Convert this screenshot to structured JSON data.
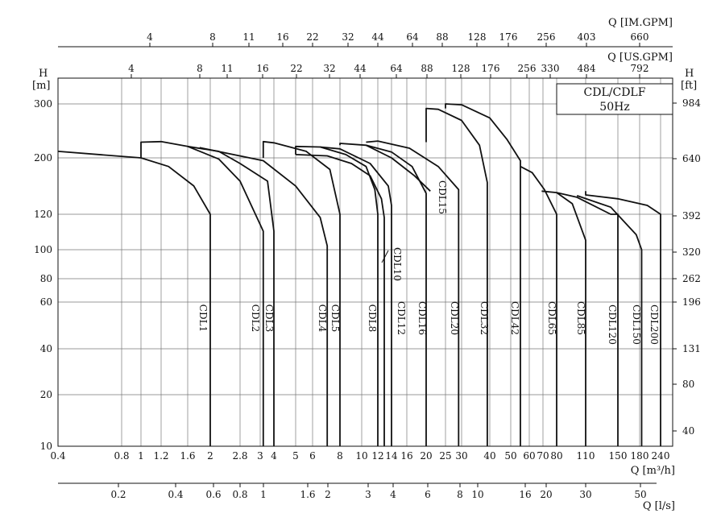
{
  "chart_data": {
    "type": "line",
    "legend": {
      "title_line1": "CDL/CDLF",
      "title_line2": "50Hz",
      "placement": "top-right"
    },
    "axes": {
      "y_left": {
        "label": "H",
        "unit": "[m]",
        "scale": "log",
        "ticks": [
          10,
          20,
          40,
          60,
          80,
          100,
          120,
          200,
          300
        ]
      },
      "y_right": {
        "label": "H",
        "unit": "[ft]",
        "ticks": [
          40,
          80,
          131,
          196,
          262,
          320,
          392,
          640,
          984
        ]
      },
      "x_main": {
        "label": "Q [m³/h]",
        "scale": "log",
        "ticks": [
          "0.4",
          "0.8",
          "1",
          "1.2",
          "1.6",
          "2",
          "2.8",
          "3",
          "4",
          "5",
          "6",
          "8",
          "10",
          "12",
          "14",
          "16",
          "20",
          "25",
          "30",
          "40",
          "50",
          "60",
          "70",
          "80",
          "110",
          "150",
          "180",
          "240"
        ]
      },
      "x_ls": {
        "label": "Q [l/s]",
        "ticks": [
          "0.2",
          "0.4",
          "0.6",
          "0.8",
          "1",
          "1.6",
          "2",
          "3",
          "4",
          "6",
          "8",
          "10",
          "16",
          "20",
          "30",
          "50"
        ]
      },
      "x_us": {
        "label": "Q [US.GPM]",
        "ticks": [
          "4",
          "8",
          "11",
          "16",
          "22",
          "32",
          "44",
          "64",
          "88",
          "128",
          "176",
          "256",
          "330",
          "484",
          "792"
        ]
      },
      "x_im": {
        "label": "Q [IM.GPM]",
        "ticks": [
          "4",
          "8",
          "11",
          "16",
          "22",
          "32",
          "44",
          "64",
          "88",
          "128",
          "176",
          "256",
          "403",
          "660"
        ]
      }
    },
    "grid": true,
    "series": [
      {
        "name": "CDL1",
        "points": [
          [
            0.4,
            210
          ],
          [
            1.0,
            200
          ],
          [
            1.3,
            185
          ],
          [
            1.7,
            155
          ],
          [
            2.0,
            120
          ],
          [
            2.0,
            10
          ]
        ]
      },
      {
        "name": "CDL2",
        "points": [
          [
            1.0,
            200
          ],
          [
            1.0,
            225
          ],
          [
            1.2,
            226
          ],
          [
            1.6,
            218
          ],
          [
            2.2,
            198
          ],
          [
            2.8,
            162
          ],
          [
            3.2,
            110
          ],
          [
            3.2,
            10
          ]
        ]
      },
      {
        "name": "CDL3",
        "points": [
          [
            1.6,
            218
          ],
          [
            2.2,
            210
          ],
          [
            2.8,
            190
          ],
          [
            3.5,
            162
          ],
          [
            4.0,
            110
          ],
          [
            4.0,
            10
          ]
        ]
      },
      {
        "name": "CDL4",
        "points": [
          [
            1.8,
            216
          ],
          [
            3.2,
            195
          ],
          [
            5.0,
            155
          ],
          [
            6.5,
            118
          ],
          [
            7.0,
            102
          ],
          [
            7.0,
            10
          ]
        ]
      },
      {
        "name": "CDL5",
        "points": [
          [
            3.2,
            200
          ],
          [
            3.2,
            226
          ],
          [
            4.0,
            224
          ],
          [
            5.6,
            210
          ],
          [
            7.2,
            180
          ],
          [
            8.0,
            120
          ],
          [
            8.0,
            10
          ]
        ]
      },
      {
        "name": "CDL8",
        "points": [
          [
            5.0,
            205
          ],
          [
            5.0,
            218
          ],
          [
            6.5,
            217
          ],
          [
            8.5,
            205
          ],
          [
            10.5,
            185
          ],
          [
            11.6,
            150
          ],
          [
            12.0,
            120
          ],
          [
            12.0,
            10
          ]
        ]
      },
      {
        "name": "CDL10",
        "points": [
          [
            5.0,
            205
          ],
          [
            7.0,
            203
          ],
          [
            9.0,
            190
          ],
          [
            11.0,
            170
          ],
          [
            12.5,
            138
          ],
          [
            12.9,
            118
          ],
          [
            12.9,
            10
          ]
        ]
      },
      {
        "name": "CDL12",
        "points": [
          [
            6.5,
            217
          ],
          [
            8.0,
            214
          ],
          [
            11.0,
            190
          ],
          [
            13.5,
            155
          ],
          [
            14.0,
            130
          ],
          [
            14.0,
            10
          ]
        ]
      },
      {
        "name": "CDL15",
        "points": [
          [
            8.0,
            220
          ],
          [
            8.0,
            223
          ],
          [
            10.5,
            220
          ],
          [
            14.0,
            200
          ],
          [
            17.5,
            170
          ],
          [
            21.0,
            148
          ]
        ]
      },
      {
        "name": "CDL16",
        "points": [
          [
            10.5,
            220
          ],
          [
            14.0,
            209
          ],
          [
            17.0,
            185
          ],
          [
            20.0,
            145
          ],
          [
            20.0,
            10
          ]
        ]
      },
      {
        "name": "CDL20",
        "points": [
          [
            10.5,
            225
          ],
          [
            12.0,
            227
          ],
          [
            16.5,
            215
          ],
          [
            23.0,
            185
          ],
          [
            29.0,
            150
          ],
          [
            29.0,
            10
          ]
        ]
      },
      {
        "name": "CDL32",
        "points": [
          [
            20.0,
            225
          ],
          [
            20.0,
            290
          ],
          [
            23.0,
            288
          ],
          [
            30.0,
            265
          ],
          [
            36.0,
            220
          ],
          [
            39.0,
            160
          ],
          [
            39.0,
            10
          ]
        ]
      },
      {
        "name": "CDL42",
        "points": [
          [
            25.0,
            290
          ],
          [
            25.0,
            300
          ],
          [
            30.0,
            298
          ],
          [
            40.0,
            270
          ],
          [
            48.0,
            230
          ],
          [
            55.0,
            195
          ],
          [
            55.0,
            10
          ]
        ]
      },
      {
        "name": "CDL65",
        "points": [
          [
            55.0,
            185
          ],
          [
            62.0,
            175
          ],
          [
            71.0,
            150
          ],
          [
            80.0,
            120
          ],
          [
            80.0,
            10
          ]
        ]
      },
      {
        "name": "CDL85",
        "points": [
          [
            69.0,
            148
          ],
          [
            80.0,
            146
          ],
          [
            95.0,
            132
          ],
          [
            110.0,
            105
          ],
          [
            110.0,
            10
          ]
        ]
      },
      {
        "name": "CDL120",
        "points": [
          [
            80.0,
            146
          ],
          [
            100.0,
            140
          ],
          [
            140.0,
            120
          ],
          [
            150.0,
            120
          ],
          [
            150.0,
            10
          ]
        ]
      },
      {
        "name": "CDL150",
        "points": [
          [
            100.0,
            142
          ],
          [
            140.0,
            128
          ],
          [
            175.0,
            108
          ],
          [
            185.0,
            100
          ],
          [
            185.0,
            10
          ]
        ]
      },
      {
        "name": "CDL200",
        "points": [
          [
            110.0,
            148
          ],
          [
            110.0,
            143
          ],
          [
            150.0,
            138
          ],
          [
            200.0,
            130
          ],
          [
            240.0,
            120
          ],
          [
            240.0,
            10
          ]
        ]
      }
    ]
  },
  "labels": [
    "CDL1",
    "CDL2",
    "CDL3",
    "CDL4",
    "CDL5",
    "CDL8",
    "CDL10",
    "CDL12",
    "CDL15",
    "CDL16",
    "CDL20",
    "CDL32",
    "CDL42",
    "CDL65",
    "CDL85",
    "CDL120",
    "CDL150",
    "CDL200"
  ],
  "colors": {
    "line": "#111111",
    "grid": "#777777",
    "background": "#ffffff"
  }
}
